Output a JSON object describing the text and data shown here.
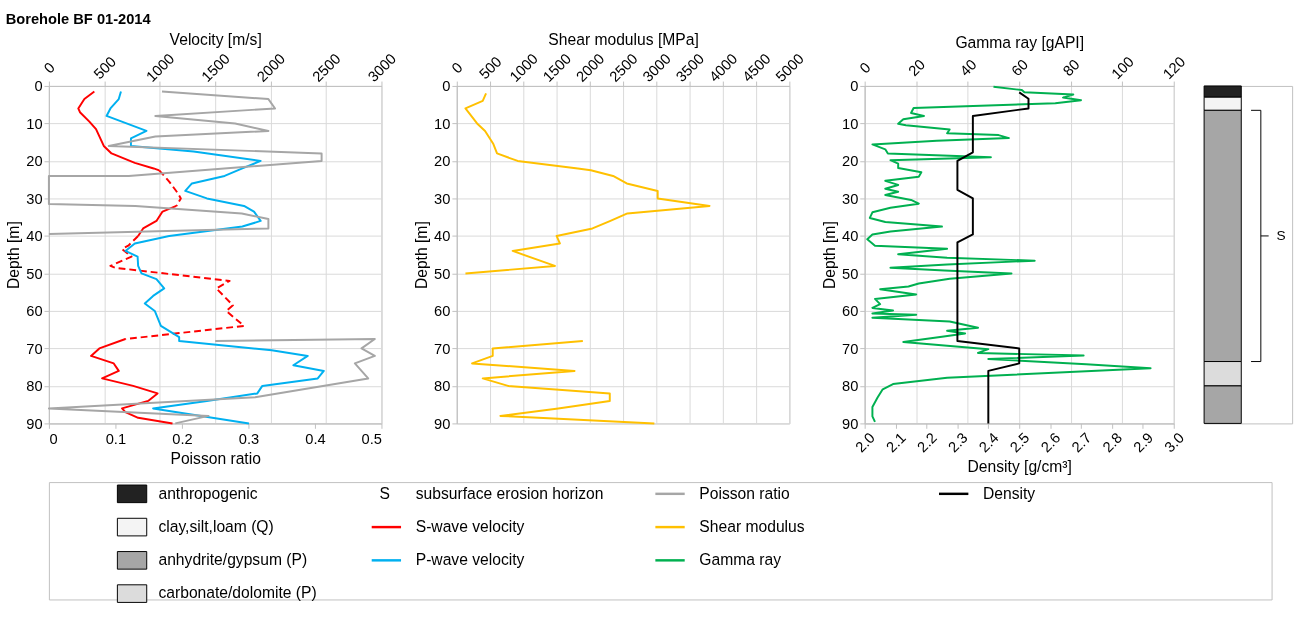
{
  "chart_data": [
    {
      "type": "line",
      "title": "Borehole BF 01-2014",
      "xlabel": "Poisson ratio",
      "x2label": "Velocity [m/s]",
      "ylabel": "Depth [m]",
      "xlim": [
        0,
        0.5
      ],
      "xticks": [
        0,
        0.1,
        0.2,
        0.3,
        0.4,
        0.5
      ],
      "x2lim": [
        0,
        3000
      ],
      "x2ticks": [
        0,
        500,
        1000,
        1500,
        2000,
        2500,
        3000
      ],
      "ylim": [
        90,
        0
      ],
      "yticks": [
        0,
        10,
        20,
        30,
        40,
        50,
        60,
        70,
        80,
        90
      ],
      "grid": true,
      "legend": "bottom",
      "line_style": "solid",
      "series": [
        {
          "name": "S-wave velocity",
          "color": "#ff0000",
          "axis": "x2",
          "x": [
            410,
            320,
            265,
            280,
            365,
            425,
            495,
            565,
            775,
            945,
            995,
            null,
            1150,
            1025,
            970,
            850,
            805,
            null,
            690,
            455,
            380,
            585,
            630,
            480,
            760,
            980,
            895,
            660,
            690,
            805,
            1115
          ],
          "values": [
            1.5,
            3.5,
            6,
            7,
            9.5,
            11.5,
            16,
            18,
            20.5,
            22,
            22.5,
            null,
            32,
            33.5,
            36,
            38,
            40,
            null,
            67.5,
            70,
            72,
            74,
            76,
            78,
            80,
            82,
            84,
            86,
            87,
            88.5,
            90
          ]
        },
        {
          "color": "#ff0000",
          "axis": "x2",
          "line_style": "dashed",
          "x": [
            995,
            1085,
            1160,
            1190,
            1150,
            null,
            805,
            720,
            660,
            745,
            555,
            600,
            1630,
            1510,
            1660,
            1600,
            1760,
            690
          ],
          "values": [
            22.5,
            25.5,
            28.5,
            30,
            32,
            null,
            40,
            42.5,
            43.5,
            45.5,
            48,
            48.5,
            52,
            54,
            58.5,
            60,
            64,
            67.5
          ]
        },
        {
          "name": "P-wave velocity",
          "color": "#00b0f0",
          "axis": "x2",
          "x": [
            650,
            630,
            555,
            520,
            880,
            740,
            740,
            1305,
            1910,
            1745,
            1585,
            1290,
            1230,
            1425,
            1760,
            1850,
            1910,
            1745,
            1085,
            775,
            690,
            800,
            805,
            835,
            970,
            1040,
            940,
            865,
            955,
            1010,
            1175,
            1175,
            2010,
            2335,
            2205,
            2480,
            2425,
            1925,
            1880,
            1425,
            940,
            1805
          ],
          "values": [
            1.5,
            3.5,
            6,
            8,
            12,
            14,
            16,
            17.5,
            20,
            22,
            24,
            26,
            28,
            30,
            32,
            33.5,
            36,
            37.5,
            40,
            42,
            44,
            45.5,
            48,
            50,
            51.5,
            54,
            56,
            58,
            60,
            64,
            67,
            68,
            70.5,
            72,
            74.5,
            76,
            78,
            80,
            82,
            84,
            86,
            90
          ]
        },
        {
          "name": "Poisson ratio",
          "color": "#a6a6a6",
          "x": [
            0.17,
            0.33,
            0.34,
            0.16,
            0.28,
            0.33,
            0.16,
            0.09,
            0.41,
            0.41,
            0.12,
            0,
            0,
            0.13,
            0.29,
            0.33,
            0.33,
            0,
            null,
            0.25,
            0.49,
            0.47,
            0.49,
            0.46,
            0.47,
            0.48,
            0.31,
            0,
            0.24,
            0.19
          ],
          "values": [
            1.5,
            3.5,
            6,
            8,
            10,
            12,
            13.5,
            16,
            18,
            20,
            24,
            24,
            31.5,
            32,
            34,
            35.5,
            38,
            39.5,
            null,
            68,
            67.5,
            70,
            72,
            74,
            76,
            78,
            83,
            86,
            88,
            90
          ]
        }
      ]
    },
    {
      "type": "line",
      "xlabel": "Shear modulus  [MPa]",
      "ylabel": "Depth [m]",
      "xlim": [
        0,
        5000
      ],
      "xticks": [
        0,
        500,
        1000,
        1500,
        2000,
        2500,
        3000,
        3500,
        4000,
        4500,
        5000
      ],
      "ylim": [
        90,
        0
      ],
      "yticks": [
        0,
        10,
        20,
        30,
        40,
        50,
        60,
        70,
        80,
        90
      ],
      "grid": true,
      "legend": "bottom",
      "line_style": "solid",
      "series": [
        {
          "name": "Shear modulus",
          "color": "#ffc000",
          "x": [
            440,
            390,
            130,
            305,
            425,
            550,
            605,
            915,
            1820,
            2015,
            2350,
            2555,
            3020,
            3020,
            3800,
            2565,
            2310,
            2040,
            1500,
            1550,
            840,
            1475,
            130,
            null,
            1895,
            540,
            540,
            230,
            1770,
            390,
            770,
            2300,
            2300,
            1525,
            655,
            2970
          ],
          "values": [
            2,
            4,
            6,
            10,
            12,
            15.5,
            18,
            20,
            22,
            22.5,
            24,
            26,
            28,
            30,
            32,
            34,
            36,
            38,
            40,
            42,
            44,
            48,
            50,
            null,
            68,
            70,
            72,
            74,
            76,
            78,
            80,
            82,
            84,
            86,
            88,
            90
          ]
        }
      ]
    },
    {
      "type": "line",
      "x2label": "Gamma ray [gAPI]",
      "xlabel": "Density [g/cm³]",
      "ylabel": "Depth [m]",
      "xlim": [
        2.0,
        3.0
      ],
      "xticks": [
        {
          "value": 2.0,
          "label": "2.0"
        },
        2.1,
        2.2,
        2.3,
        2.4,
        2.5,
        2.6,
        2.7,
        2.8,
        2.9,
        {
          "value": 3.0,
          "label": "3.0"
        }
      ],
      "x2lim": [
        0,
        120
      ],
      "x2ticks": [
        0,
        20,
        40,
        60,
        80,
        100,
        120
      ],
      "ylim": [
        90,
        0
      ],
      "yticks": [
        0,
        10,
        20,
        30,
        40,
        50,
        60,
        70,
        80,
        90
      ],
      "grid": true,
      "legend": "bottom",
      "line_style": "solid",
      "series": [
        {
          "name": "Gamma ray",
          "color": "#00b050",
          "axis": "x2",
          "x": [
            50,
            61,
            62,
            81,
            77,
            84,
            74,
            19,
            18,
            23,
            15,
            13,
            16,
            33,
            32,
            52,
            56,
            28,
            3,
            8,
            9,
            49,
            10,
            13,
            13,
            22,
            21,
            8,
            13,
            8,
            13,
            8,
            18,
            21,
            10,
            3,
            2,
            8,
            30,
            10,
            3,
            1,
            4,
            32,
            13,
            32,
            66,
            32,
            10,
            31,
            57,
            33,
            21,
            17,
            6,
            20,
            4,
            6,
            3,
            11,
            3,
            20,
            3,
            33,
            44,
            32,
            39,
            30,
            15,
            48,
            44,
            85,
            48,
            86,
            111,
            32,
            11,
            7,
            5,
            3,
            3,
            4
          ],
          "values": [
            0.2,
            1.1,
            1.7,
            2.3,
            3.1,
            3.8,
            4.6,
            5.9,
            7.2,
            8,
            8.9,
            10.1,
            10.5,
            11.6,
            12.6,
            13.1,
            13.9,
            14.6,
            15.6,
            16.9,
            18,
            19,
            19.8,
            20.7,
            21.9,
            23,
            24.2,
            25.3,
            26.4,
            27.4,
            28.2,
            29.1,
            30.4,
            31.4,
            32.5,
            33.7,
            35.2,
            36.3,
            37.5,
            38.8,
            39.6,
            40.9,
            42.6,
            43.4,
            44.9,
            45.8,
            46.6,
            47.6,
            48.5,
            49.2,
            50,
            51.4,
            52.7,
            53.5,
            54.2,
            55.6,
            56.8,
            58.2,
            59.2,
            59.9,
            60.7,
            61,
            61.8,
            62.8,
            64.5,
            65.3,
            66,
            66.9,
            68.3,
            70.2,
            71.2,
            71.9,
            72.8,
            74.2,
            75.3,
            77.8,
            79.5,
            80.9,
            83.1,
            85.6,
            88.1,
            89.6
          ]
        },
        {
          "name": "Density",
          "color": "#000000",
          "x": [
            2.5,
            2.53,
            2.53,
            2.35,
            2.35,
            2.3,
            2.3,
            2.35,
            2.35,
            2.3,
            2.3,
            2.5,
            2.5,
            2.4,
            2.4
          ],
          "values": [
            1.7,
            3.4,
            6,
            8,
            17.7,
            20,
            27.7,
            30,
            39.6,
            41.7,
            68,
            70,
            74,
            76,
            90
          ]
        }
      ]
    },
    {
      "type": "bar",
      "stacked": true,
      "categories": [
        null
      ],
      "ylim": [
        90,
        0
      ],
      "tick_labels": false,
      "legend": "bottom",
      "annotations": [
        "S",
        "subsurface erosion horizon"
      ],
      "series": [
        {
          "name": "anthropogenic",
          "color": "#222222",
          "values": [
            3
          ]
        },
        {
          "name": "clay,silt,loam (Q)",
          "color": "#f4f4f4",
          "values": [
            3.5
          ]
        },
        {
          "name": "anhydrite/gypsum (P)",
          "color": "#a6a6a6",
          "values": [
            67
          ]
        },
        {
          "name": "carbonate/dolomite (P)",
          "color": "#dcdcdc",
          "values": [
            6.5
          ]
        },
        {
          "color": "#a6a6a6",
          "values": [
            10
          ]
        }
      ]
    }
  ]
}
